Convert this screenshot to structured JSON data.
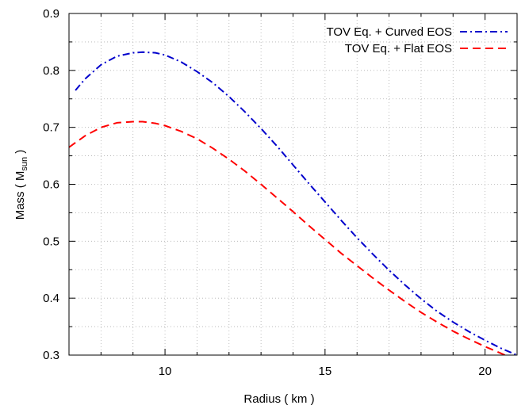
{
  "chart_data": {
    "type": "line",
    "title": "",
    "xlabel": "Radius ( km )",
    "ylabel": "Mass ( M",
    "ylabel_subscript": "sun",
    "ylabel_suffix": " )",
    "xlim": [
      7.0,
      21.0
    ],
    "ylim": [
      0.3,
      0.9
    ],
    "x_ticks": [
      10,
      15,
      20
    ],
    "x_tick_labels": [
      "10",
      "15",
      "20"
    ],
    "y_ticks": [
      0.3,
      0.4,
      0.5,
      0.6,
      0.7,
      0.8,
      0.9
    ],
    "y_tick_labels": [
      "0.3",
      "0.4",
      "0.5",
      "0.6",
      "0.7",
      "0.8",
      "0.9"
    ],
    "grid": true,
    "legend_position": "top-right",
    "series": [
      {
        "name": "TOV Eq. + Curved EOS",
        "color": "#0000cc",
        "dash": "dash-dot",
        "x": [
          7.2,
          7.5,
          8.0,
          8.5,
          9.0,
          9.3,
          9.7,
          10.0,
          10.5,
          11.0,
          11.5,
          12.0,
          12.5,
          13.0,
          13.5,
          14.0,
          14.5,
          15.0,
          15.5,
          16.0,
          16.5,
          17.0,
          17.5,
          18.0,
          18.5,
          19.0,
          19.5,
          20.0,
          20.5,
          21.0
        ],
        "y": [
          0.765,
          0.785,
          0.81,
          0.825,
          0.831,
          0.832,
          0.831,
          0.827,
          0.815,
          0.798,
          0.778,
          0.754,
          0.727,
          0.698,
          0.667,
          0.634,
          0.601,
          0.569,
          0.537,
          0.506,
          0.477,
          0.449,
          0.423,
          0.399,
          0.377,
          0.358,
          0.341,
          0.326,
          0.312,
          0.3
        ]
      },
      {
        "name": "TOV Eq. + Flat EOS",
        "color": "#ff0000",
        "dash": "dashed",
        "x": [
          7.0,
          7.5,
          8.0,
          8.5,
          9.0,
          9.3,
          9.7,
          10.0,
          10.5,
          11.0,
          11.5,
          12.0,
          12.5,
          13.0,
          13.5,
          14.0,
          14.5,
          15.0,
          15.5,
          16.0,
          16.5,
          17.0,
          17.5,
          18.0,
          18.5,
          19.0,
          19.5,
          20.0,
          20.5,
          20.9
        ],
        "y": [
          0.665,
          0.685,
          0.7,
          0.708,
          0.71,
          0.71,
          0.707,
          0.703,
          0.693,
          0.68,
          0.663,
          0.644,
          0.623,
          0.6,
          0.576,
          0.552,
          0.527,
          0.503,
          0.479,
          0.457,
          0.435,
          0.414,
          0.394,
          0.375,
          0.358,
          0.342,
          0.328,
          0.315,
          0.303,
          0.293
        ]
      }
    ]
  }
}
